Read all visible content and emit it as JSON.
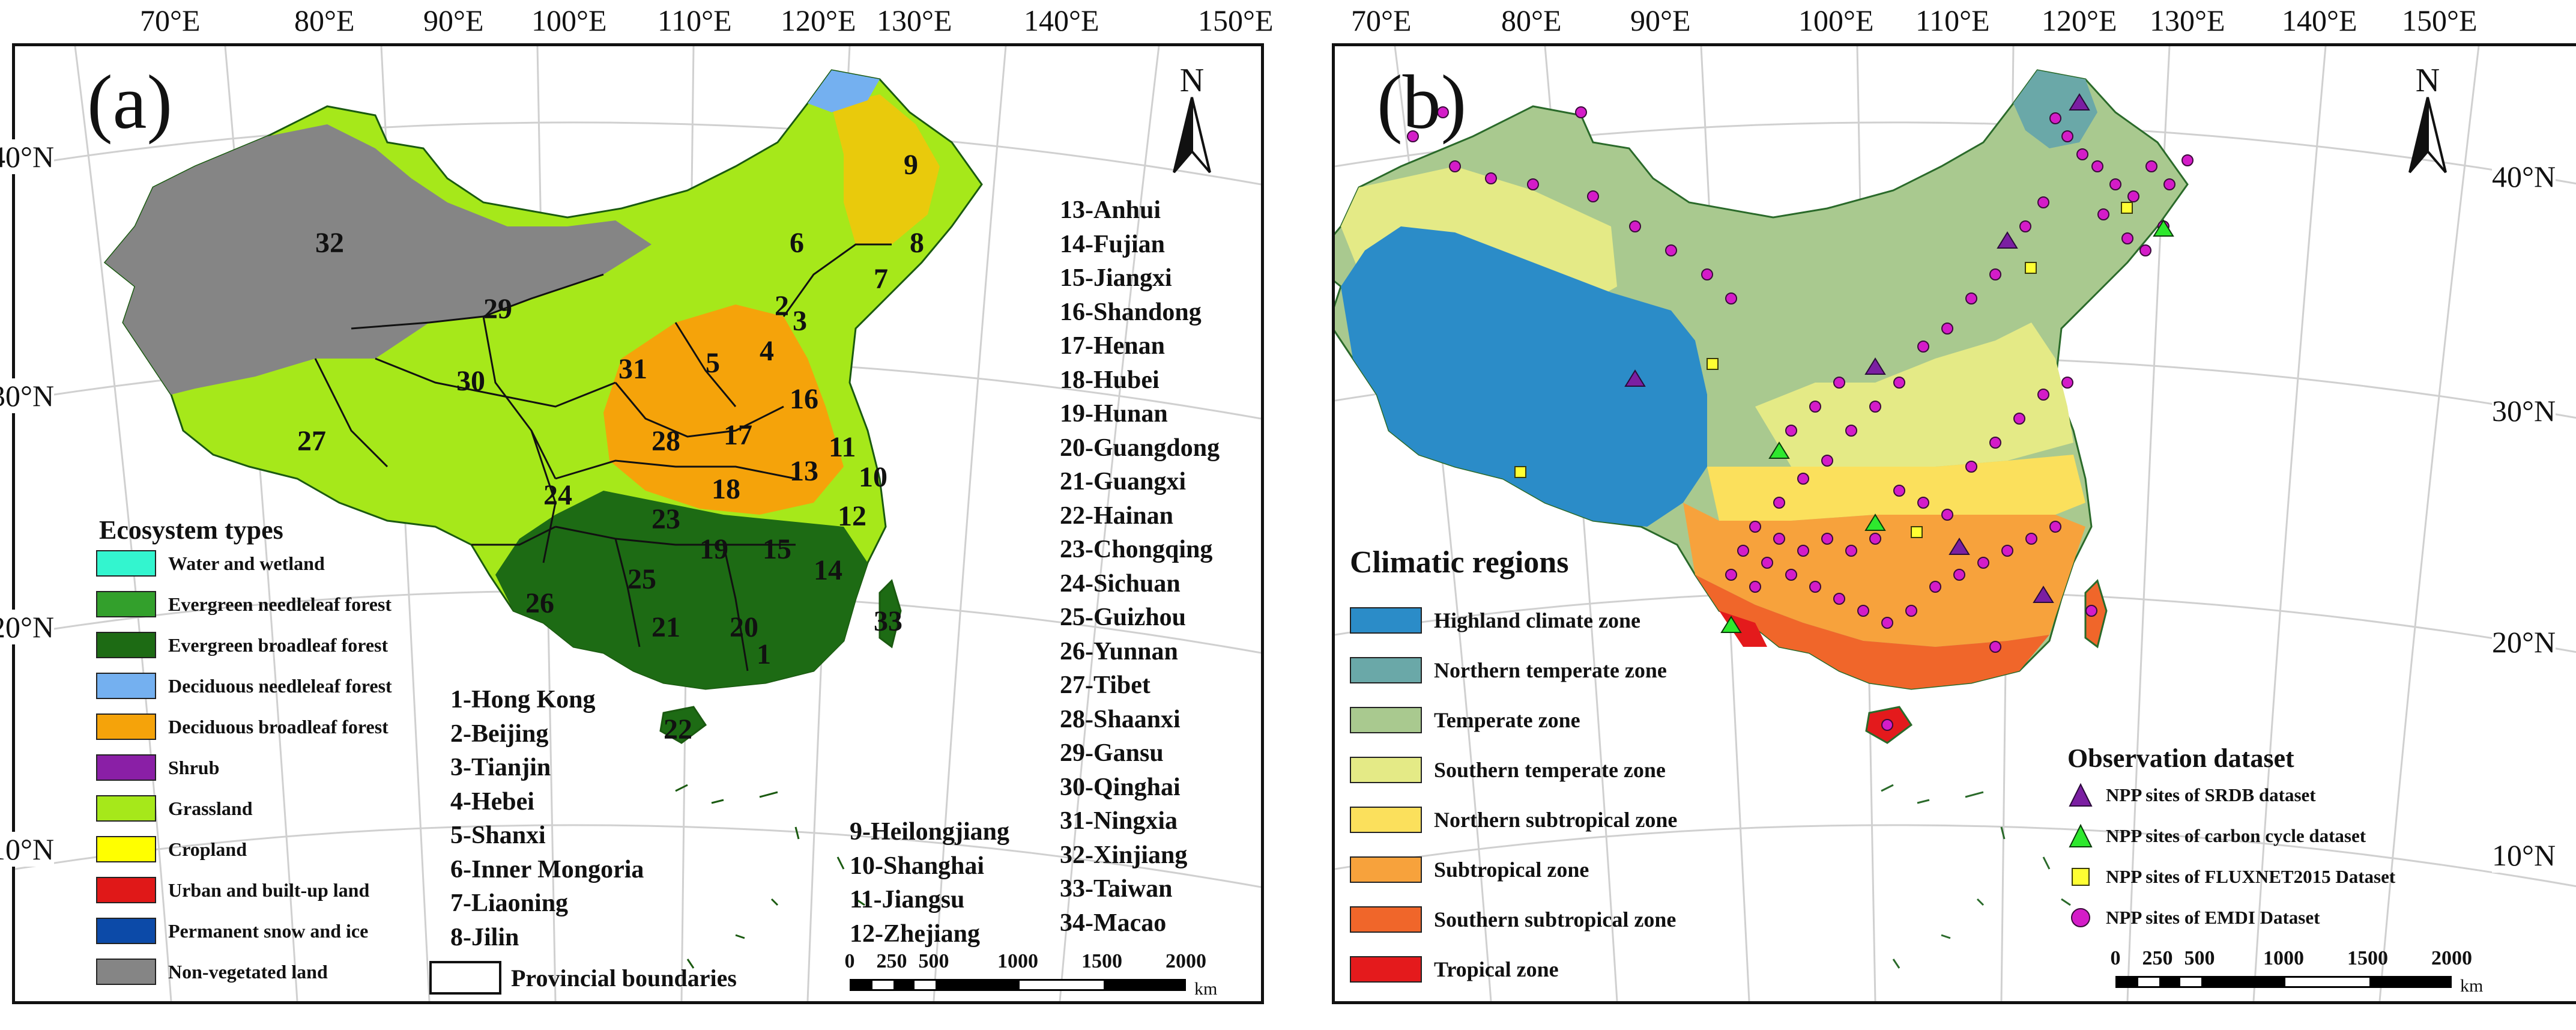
{
  "panel_a": {
    "letter": "(a)",
    "north": "N",
    "lon_labels": [
      "70°E",
      "80°E",
      "90°E",
      "100°E",
      "110°E",
      "120°E",
      "130°E",
      "140°E",
      "150°E"
    ],
    "lat_labels_left": [
      "40°N",
      "30°N",
      "20°N",
      "10°N"
    ],
    "legend_title": "Ecosystem types",
    "legend": [
      {
        "label": "Water and wetland",
        "color": "#33f5cf"
      },
      {
        "label": "Evergreen needleleaf forest",
        "color": "#33a02c"
      },
      {
        "label": "Evergreen broadleaf forest",
        "color": "#1d6b14"
      },
      {
        "label": "Deciduous needleleaf forest",
        "color": "#74b0f0"
      },
      {
        "label": "Deciduous broadleaf forest",
        "color": "#f5a30a"
      },
      {
        "label": "Shrub",
        "color": "#8a1fa6"
      },
      {
        "label": "Grassland",
        "color": "#a6e81a"
      },
      {
        "label": "Cropland",
        "color": "#ffff00"
      },
      {
        "label": "Urban and built-up land",
        "color": "#e01818"
      },
      {
        "label": "Permanent snow and ice",
        "color": "#0c4aa8"
      },
      {
        "label": "Non-vegetated land",
        "color": "#858585"
      }
    ],
    "boundary_legend": "Provincial boundaries",
    "province_list_1": [
      "1-Hong Kong",
      "2-Beijing",
      "3-Tianjin",
      "4-Hebei",
      "5-Shanxi",
      "6-Inner Mongoria",
      "7-Liaoning",
      "8-Jilin"
    ],
    "province_list_2": [
      "9-Heilongjiang",
      "10-Shanghai",
      "11-Jiangsu",
      "12-Zhejiang"
    ],
    "province_list_3": [
      "13-Anhui",
      "14-Fujian",
      "15-Jiangxi",
      "16-Shandong",
      "17-Henan",
      "18-Hubei",
      "19-Hunan",
      "20-Guangdong",
      "21-Guangxi",
      "22-Hainan",
      "23-Chongqing",
      "24-Sichuan",
      "25-Guizhou",
      "26-Yunnan",
      "27-Tibet",
      "28-Shaanxi",
      "29-Gansu",
      "30-Qinghai",
      "31-Ningxia",
      "32-Xinjiang",
      "33-Taiwan",
      "34-Macao"
    ],
    "map_numbers": [
      "1",
      "2",
      "3",
      "4",
      "5",
      "6",
      "7",
      "8",
      "9",
      "10",
      "11",
      "12",
      "13",
      "14",
      "15",
      "16",
      "17",
      "18",
      "19",
      "20",
      "21",
      "22",
      "23",
      "24",
      "25",
      "26",
      "27",
      "28",
      "29",
      "30",
      "31",
      "32",
      "33"
    ],
    "scale": {
      "ticks": [
        "0",
        "250",
        "500",
        "1000",
        "1500",
        "2000"
      ],
      "unit": "km"
    }
  },
  "panel_b": {
    "letter": "(b)",
    "north": "N",
    "lon_labels": [
      "70°E",
      "80°E",
      "90°E",
      "100°E",
      "110°E",
      "120°E",
      "130°E",
      "140°E",
      "150°E"
    ],
    "lat_labels_right": [
      "40°N",
      "30°N",
      "20°N",
      "10°N"
    ],
    "legend_title": "Climatic regions",
    "legend": [
      {
        "label": "Highland climate zone",
        "color": "#2b8cc8"
      },
      {
        "label": "Northern temperate zone",
        "color": "#6aa8a8"
      },
      {
        "label": "Temperate zone",
        "color": "#a9c98f"
      },
      {
        "label": "Southern temperate zone",
        "color": "#e4ea86"
      },
      {
        "label": "Northern subtropical zone",
        "color": "#fbe05c"
      },
      {
        "label": "Subtropical zone",
        "color": "#f7a23c"
      },
      {
        "label": "Southern subtropical zone",
        "color": "#f0662a"
      },
      {
        "label": "Tropical zone",
        "color": "#e41a1c"
      }
    ],
    "obs_title": "Observation dataset",
    "obs": [
      {
        "label": "NPP sites of SRDB dataset",
        "symbol": "triangle",
        "color": "#7b1fa2"
      },
      {
        "label": "NPP sites of carbon cycle dataset",
        "symbol": "triangle",
        "color": "#2ee82e"
      },
      {
        "label": "NPP sites of FLUXNET2015 Dataset",
        "symbol": "square",
        "color": "#ffff33"
      },
      {
        "label": "NPP sites of EMDI Dataset",
        "symbol": "circle",
        "color": "#d41cc8"
      }
    ],
    "scale": {
      "ticks": [
        "0",
        "250",
        "500",
        "1000",
        "1500",
        "2000"
      ],
      "unit": "km"
    }
  }
}
